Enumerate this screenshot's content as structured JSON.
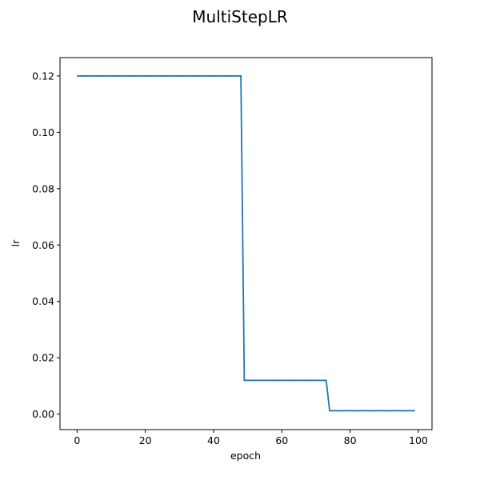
{
  "chart_data": {
    "type": "line",
    "title": "MultiStepLR",
    "xlabel": "epoch",
    "ylabel": "lr",
    "xlim": [
      -5,
      104
    ],
    "ylim": [
      -0.0055,
      0.1265
    ],
    "xticks": [
      0,
      20,
      40,
      60,
      80,
      100
    ],
    "yticks": [
      0.0,
      0.02,
      0.04,
      0.06,
      0.08,
      0.1,
      0.12
    ],
    "ytick_labels": [
      "0.00",
      "0.02",
      "0.04",
      "0.06",
      "0.08",
      "0.10",
      "0.12"
    ],
    "xtick_labels": [
      "0",
      "20",
      "40",
      "60",
      "80",
      "100"
    ],
    "grid": false,
    "series": [
      {
        "color": "#1f77b4",
        "segments": [
          {
            "x_start": 0,
            "x_end": 48,
            "y": 0.12
          },
          {
            "x_start": 49,
            "x_end": 73,
            "y": 0.012
          },
          {
            "x_start": 74,
            "x_end": 99,
            "y": 0.0012
          }
        ]
      }
    ]
  }
}
